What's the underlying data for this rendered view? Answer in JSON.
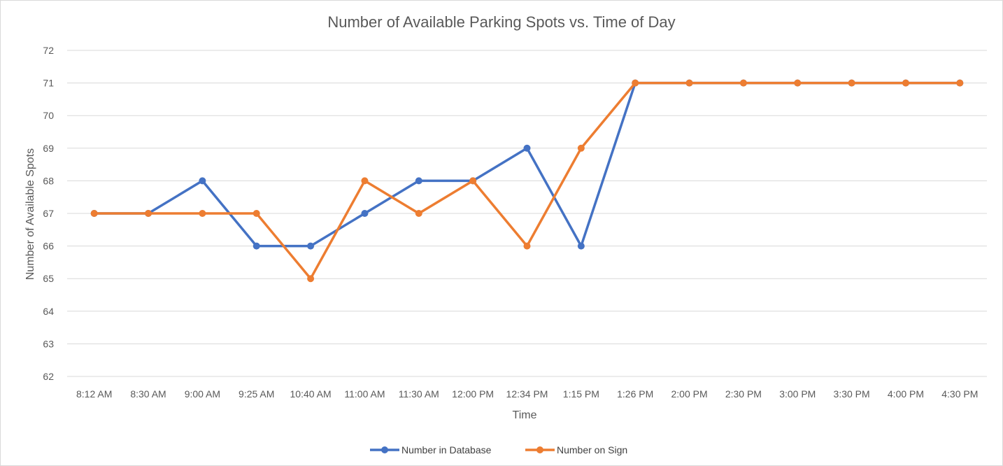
{
  "chart_data": {
    "type": "line",
    "title": "Number of Available Parking Spots vs. Time of Day",
    "xlabel": "Time",
    "ylabel": "Number of Available Spots",
    "categories": [
      "8:12 AM",
      "8:30 AM",
      "9:00 AM",
      "9:25 AM",
      "10:40 AM",
      "11:00 AM",
      "11:30 AM",
      "12:00 PM",
      "12:34 PM",
      "1:15 PM",
      "1:26 PM",
      "2:00 PM",
      "2:30 PM",
      "3:00 PM",
      "3:30 PM",
      "4:00 PM",
      "4:30 PM"
    ],
    "ylim": [
      62,
      72
    ],
    "yticks": [
      "62",
      "63",
      "64",
      "65",
      "66",
      "67",
      "68",
      "69",
      "70",
      "71",
      "72"
    ],
    "grid": true,
    "legend_position": "bottom",
    "series": [
      {
        "name": "Number in Database",
        "color": "#4472C4",
        "values": [
          67,
          67,
          68,
          66,
          66,
          67,
          68,
          68,
          69,
          66,
          71,
          71,
          71,
          71,
          71,
          71,
          71
        ]
      },
      {
        "name": "Number on Sign",
        "color": "#ED7D31",
        "values": [
          67,
          67,
          67,
          67,
          65,
          68,
          67,
          68,
          66,
          69,
          71,
          71,
          71,
          71,
          71,
          71,
          71
        ]
      }
    ]
  }
}
